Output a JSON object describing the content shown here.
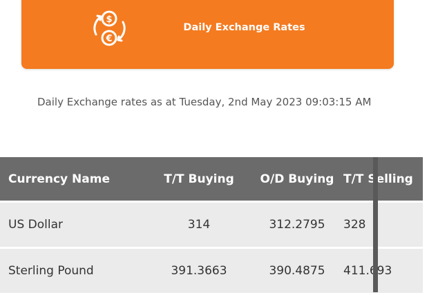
{
  "banner": {
    "title": "Daily Exchange Rates",
    "icon": "currency-exchange-icon",
    "background_color": "#f47b20"
  },
  "subtitle": "Daily Exchange rates as at Tuesday, 2nd May 2023 09:03:15 AM",
  "table": {
    "columns": [
      "Currency Name",
      "T/T Buying",
      "O/D Buying",
      "T/T Selling"
    ],
    "rows": [
      [
        "US Dollar",
        "314",
        "312.2795",
        "328"
      ],
      [
        "Sterling Pound",
        "391.3663",
        "390.4875",
        "411.693"
      ]
    ]
  },
  "colors": {
    "header_bg": "#6b6b6b",
    "row_bg": "#ebebeb"
  }
}
